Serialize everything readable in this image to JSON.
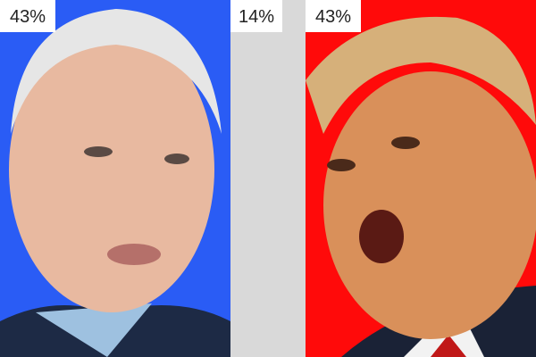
{
  "colors": {
    "left_bg": "#2a5cf5",
    "middle_bg": "#d9d9d9",
    "right_bg": "#ff0a0a"
  },
  "panels": [
    {
      "percent": "43%"
    },
    {
      "percent": "14%"
    },
    {
      "percent": "43%"
    }
  ]
}
